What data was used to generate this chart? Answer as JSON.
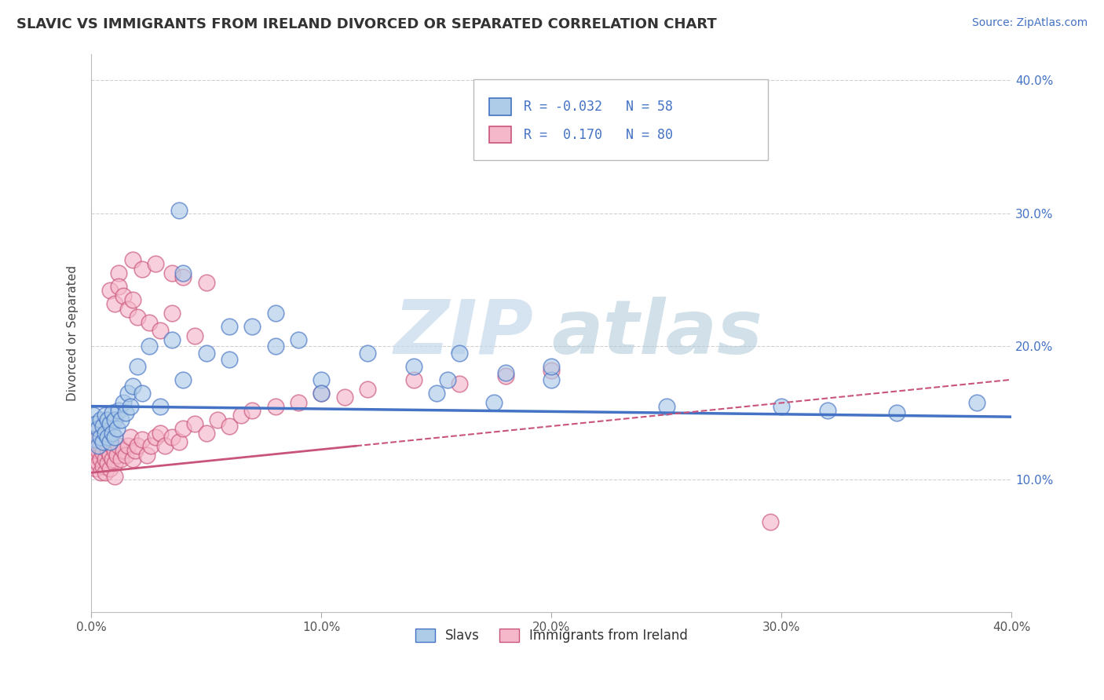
{
  "title": "SLAVIC VS IMMIGRANTS FROM IRELAND DIVORCED OR SEPARATED CORRELATION CHART",
  "source": "Source: ZipAtlas.com",
  "ylabel": "Divorced or Separated",
  "color_slavs": "#aecce8",
  "color_ireland": "#f5b8cb",
  "color_slavs_line": "#4472c4",
  "color_ireland_line": "#c9547a",
  "color_text_blue": "#4472c4",
  "watermark_zip": "ZIP",
  "watermark_atlas": "atlas",
  "grid_color": "#d0d0d0",
  "xlim": [
    0.0,
    0.4
  ],
  "ylim": [
    0.0,
    0.42
  ],
  "xticks": [
    0.0,
    0.1,
    0.2,
    0.3,
    0.4
  ],
  "yticks": [
    0.1,
    0.2,
    0.3,
    0.4
  ],
  "xticklabels": [
    "0.0%",
    "10.0%",
    "20.0%",
    "30.0%",
    "40.0%"
  ],
  "yticklabels_right": [
    "10.0%",
    "20.0%",
    "30.0%",
    "40.0%"
  ],
  "legend_label1": "R = -0.032   N = 58",
  "legend_label2": "R =  0.170   N = 80",
  "bottom_legend1": "Slavs",
  "bottom_legend2": "Immigrants from Ireland",
  "slavs_x": [
    0.001,
    0.002,
    0.002,
    0.003,
    0.003,
    0.004,
    0.004,
    0.005,
    0.005,
    0.006,
    0.006,
    0.007,
    0.007,
    0.008,
    0.008,
    0.009,
    0.009,
    0.01,
    0.01,
    0.011,
    0.012,
    0.013,
    0.014,
    0.015,
    0.016,
    0.017,
    0.018,
    0.02,
    0.022,
    0.025,
    0.03,
    0.035,
    0.04,
    0.05,
    0.06,
    0.07,
    0.08,
    0.09,
    0.1,
    0.12,
    0.14,
    0.16,
    0.18,
    0.2,
    0.04,
    0.06,
    0.08,
    0.1,
    0.15,
    0.2,
    0.25,
    0.3,
    0.35,
    0.038,
    0.155,
    0.175,
    0.32,
    0.385
  ],
  "slavs_y": [
    0.148,
    0.13,
    0.142,
    0.125,
    0.138,
    0.132,
    0.145,
    0.128,
    0.14,
    0.135,
    0.148,
    0.132,
    0.145,
    0.128,
    0.142,
    0.135,
    0.15,
    0.132,
    0.145,
    0.138,
    0.152,
    0.145,
    0.158,
    0.15,
    0.165,
    0.155,
    0.17,
    0.185,
    0.165,
    0.2,
    0.155,
    0.205,
    0.175,
    0.195,
    0.19,
    0.215,
    0.2,
    0.205,
    0.175,
    0.195,
    0.185,
    0.195,
    0.18,
    0.175,
    0.255,
    0.215,
    0.225,
    0.165,
    0.165,
    0.185,
    0.155,
    0.155,
    0.15,
    0.302,
    0.175,
    0.158,
    0.152,
    0.158
  ],
  "ireland_x": [
    0.001,
    0.001,
    0.001,
    0.002,
    0.002,
    0.002,
    0.003,
    0.003,
    0.003,
    0.004,
    0.004,
    0.004,
    0.005,
    0.005,
    0.005,
    0.006,
    0.006,
    0.007,
    0.007,
    0.008,
    0.008,
    0.008,
    0.009,
    0.009,
    0.01,
    0.01,
    0.011,
    0.012,
    0.013,
    0.014,
    0.015,
    0.016,
    0.017,
    0.018,
    0.019,
    0.02,
    0.022,
    0.024,
    0.026,
    0.028,
    0.03,
    0.032,
    0.035,
    0.038,
    0.04,
    0.045,
    0.05,
    0.055,
    0.06,
    0.065,
    0.07,
    0.08,
    0.09,
    0.1,
    0.11,
    0.12,
    0.14,
    0.16,
    0.18,
    0.2,
    0.012,
    0.018,
    0.022,
    0.028,
    0.035,
    0.04,
    0.05,
    0.008,
    0.01,
    0.012,
    0.014,
    0.016,
    0.018,
    0.02,
    0.025,
    0.03,
    0.035,
    0.045,
    0.295,
    0.01
  ],
  "ireland_y": [
    0.115,
    0.125,
    0.135,
    0.108,
    0.118,
    0.128,
    0.112,
    0.122,
    0.132,
    0.105,
    0.115,
    0.125,
    0.11,
    0.12,
    0.13,
    0.105,
    0.115,
    0.112,
    0.122,
    0.108,
    0.118,
    0.128,
    0.115,
    0.125,
    0.112,
    0.122,
    0.118,
    0.125,
    0.115,
    0.122,
    0.118,
    0.125,
    0.132,
    0.115,
    0.122,
    0.125,
    0.13,
    0.118,
    0.125,
    0.132,
    0.135,
    0.125,
    0.132,
    0.128,
    0.138,
    0.142,
    0.135,
    0.145,
    0.14,
    0.148,
    0.152,
    0.155,
    0.158,
    0.165,
    0.162,
    0.168,
    0.175,
    0.172,
    0.178,
    0.182,
    0.255,
    0.265,
    0.258,
    0.262,
    0.255,
    0.252,
    0.248,
    0.242,
    0.232,
    0.245,
    0.238,
    0.228,
    0.235,
    0.222,
    0.218,
    0.212,
    0.225,
    0.208,
    0.068,
    0.102
  ]
}
